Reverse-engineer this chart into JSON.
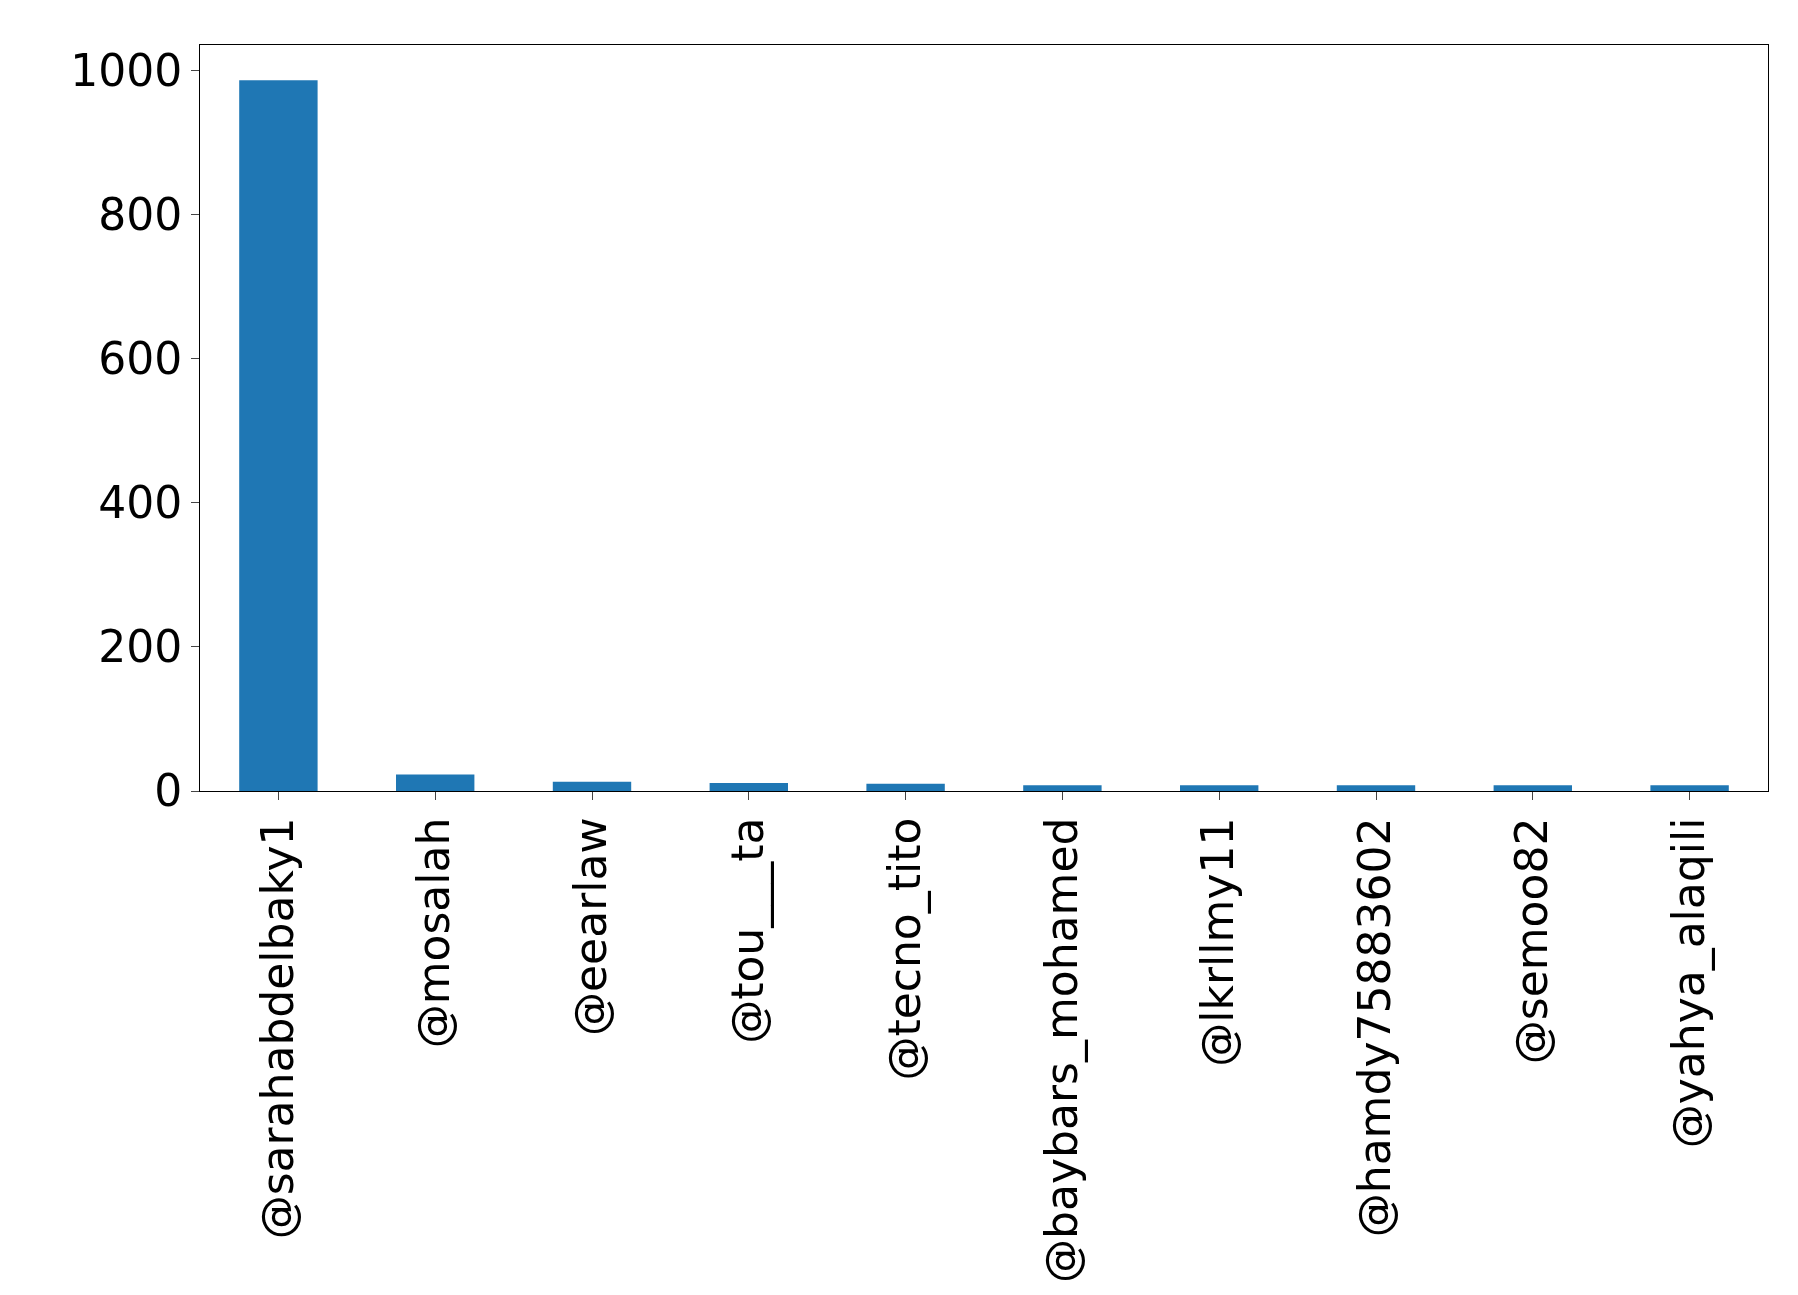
{
  "chart_data": {
    "type": "bar",
    "categories": [
      "@sarahabdelbaky1",
      "@mosalah",
      "@eearlaw",
      "@tou___ta",
      "@tecno_tito",
      "@baybars_mohamed",
      "@lkrllmy11",
      "@hamdy75883602",
      "@semoo82",
      "@yahya_alaqili"
    ],
    "values": [
      986,
      23,
      13,
      11,
      10,
      8,
      8,
      8,
      8,
      8
    ],
    "color": "#1f77b4",
    "ylim": [
      0,
      1035
    ],
    "yticks": [
      0,
      200,
      400,
      600,
      800,
      1000
    ]
  }
}
